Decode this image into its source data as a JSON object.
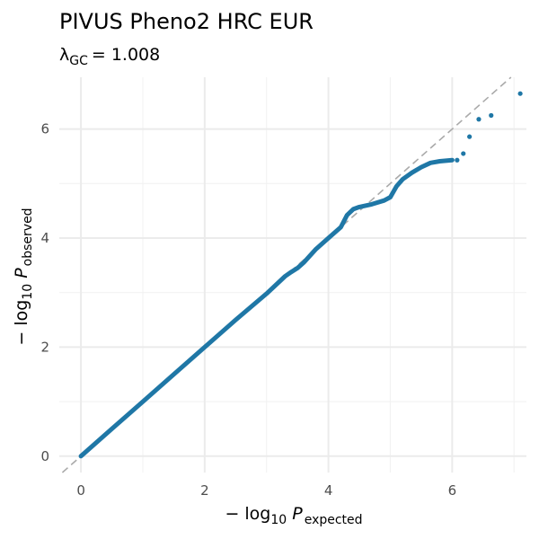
{
  "chart_data": {
    "type": "scatter",
    "title": "PIVUS Pheno2 HRC EUR",
    "subtitle": {
      "symbol": "λ",
      "subscript": "GC",
      "operator": "= ",
      "value": "1.008"
    },
    "xlabel": {
      "prefix": "− log",
      "base": "10",
      "var": " P",
      "subscript": "expected"
    },
    "ylabel": {
      "prefix": "− log",
      "base": "10",
      "var": " P",
      "subscript": "observed"
    },
    "xlim": [
      -0.35,
      7.2
    ],
    "ylim": [
      -0.3,
      6.95
    ],
    "x_ticks": [
      0,
      2,
      4,
      6
    ],
    "x_tick_labels": [
      "0",
      "2",
      "4",
      "6"
    ],
    "y_ticks": [
      0,
      2,
      4,
      6
    ],
    "y_tick_labels": [
      "0",
      "2",
      "4",
      "6"
    ],
    "grid": true,
    "reference_line": {
      "slope": 1,
      "intercept": 0,
      "color": "#aaaaaa",
      "style": "dashed"
    },
    "point_color": "#1f77a6",
    "curve_points": [
      [
        0.0,
        0.0
      ],
      [
        0.5,
        0.5
      ],
      [
        1.0,
        1.0
      ],
      [
        1.5,
        1.5
      ],
      [
        2.0,
        2.0
      ],
      [
        2.5,
        2.5
      ],
      [
        3.0,
        2.98
      ],
      [
        3.3,
        3.3
      ],
      [
        3.4,
        3.38
      ],
      [
        3.5,
        3.45
      ],
      [
        3.6,
        3.55
      ],
      [
        3.8,
        3.8
      ],
      [
        4.0,
        4.0
      ],
      [
        4.2,
        4.2
      ],
      [
        4.3,
        4.42
      ],
      [
        4.4,
        4.53
      ],
      [
        4.5,
        4.57
      ],
      [
        4.7,
        4.62
      ],
      [
        4.9,
        4.69
      ],
      [
        5.0,
        4.75
      ],
      [
        5.1,
        4.95
      ],
      [
        5.2,
        5.08
      ],
      [
        5.35,
        5.2
      ],
      [
        5.5,
        5.3
      ],
      [
        5.65,
        5.38
      ],
      [
        5.8,
        5.41
      ],
      [
        6.0,
        5.43
      ]
    ],
    "tail_points": [
      [
        6.08,
        5.43
      ],
      [
        6.18,
        5.55
      ],
      [
        6.28,
        5.86
      ],
      [
        6.43,
        6.18
      ],
      [
        6.63,
        6.25
      ],
      [
        7.1,
        6.65
      ]
    ]
  }
}
